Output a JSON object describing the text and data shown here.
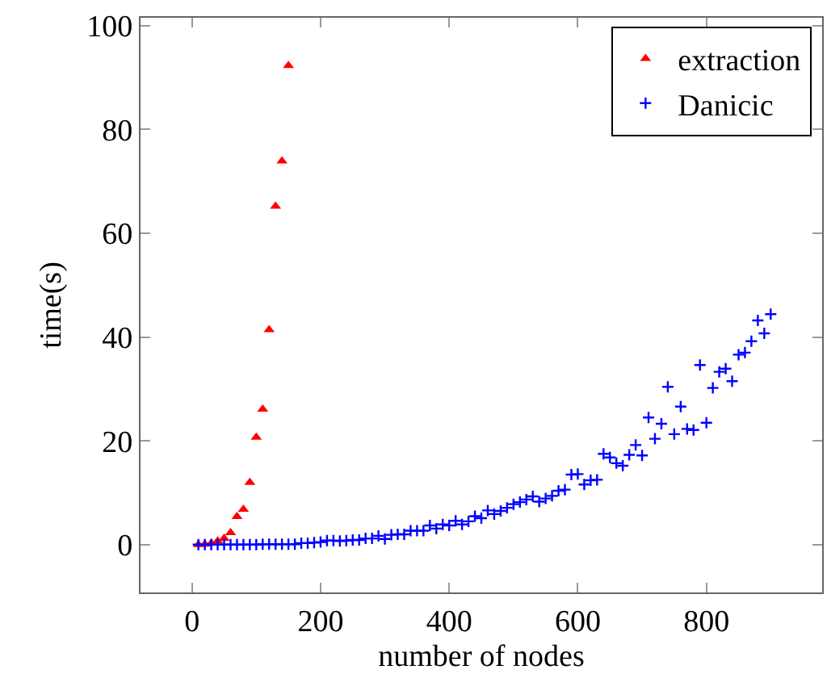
{
  "chart_data": {
    "type": "scatter",
    "xlabel": "number of nodes",
    "ylabel": "time(s)",
    "xlim": [
      -80,
      980
    ],
    "ylim": [
      -9.2,
      101.5
    ],
    "xticks": [
      0,
      200,
      400,
      600,
      800
    ],
    "yticks": [
      0,
      20,
      40,
      60,
      80,
      100
    ],
    "legend": "top right",
    "series": [
      {
        "name": "extraction",
        "color": "#ff0000",
        "marker": "triangle",
        "x": [
          10,
          20,
          30,
          40,
          50,
          60,
          70,
          80,
          90,
          100,
          110,
          120,
          130,
          140,
          150
        ],
        "values": [
          0.0,
          0.1,
          0.3,
          0.7,
          1.2,
          2.3,
          5.4,
          6.8,
          12.0,
          20.7,
          26.1,
          41.4,
          65.2,
          73.9,
          92.3
        ]
      },
      {
        "name": "Danicic",
        "color": "#0000ff",
        "marker": "cross",
        "x": [
          10,
          20,
          30,
          40,
          50,
          60,
          70,
          80,
          90,
          100,
          110,
          120,
          130,
          140,
          150,
          160,
          170,
          180,
          190,
          200,
          210,
          220,
          230,
          240,
          250,
          260,
          270,
          280,
          290,
          300,
          310,
          320,
          330,
          340,
          350,
          360,
          370,
          380,
          390,
          400,
          410,
          420,
          430,
          440,
          450,
          460,
          470,
          480,
          490,
          500,
          510,
          520,
          530,
          540,
          550,
          560,
          570,
          580,
          590,
          600,
          610,
          620,
          630,
          640,
          650,
          660,
          670,
          680,
          690,
          700,
          710,
          720,
          730,
          740,
          750,
          760,
          770,
          780,
          790,
          800,
          810,
          820,
          830,
          840,
          850,
          860,
          870,
          880,
          890,
          900
        ],
        "values": [
          0.0,
          0.0,
          0.0,
          0.0,
          0.0,
          0.0,
          0.0,
          0.0,
          0.0,
          0.0,
          0.1,
          0.1,
          0.1,
          0.1,
          0.1,
          0.1,
          0.3,
          0.3,
          0.4,
          0.5,
          0.8,
          0.8,
          0.7,
          0.8,
          0.9,
          0.9,
          1.2,
          1.2,
          1.7,
          1.1,
          1.9,
          2.0,
          2.0,
          2.7,
          2.7,
          2.7,
          3.7,
          3.1,
          3.9,
          3.7,
          4.6,
          3.9,
          4.5,
          5.5,
          5.1,
          6.6,
          5.9,
          6.5,
          7.1,
          7.8,
          8.2,
          8.7,
          9.3,
          8.3,
          8.9,
          9.4,
          10.4,
          10.6,
          13.5,
          13.6,
          11.6,
          12.4,
          12.5,
          17.5,
          16.8,
          15.7,
          15.2,
          17.3,
          19.2,
          17.2,
          24.5,
          20.4,
          23.3,
          30.4,
          21.3,
          26.6,
          22.3,
          22.1,
          34.6,
          23.5,
          30.2,
          33.3,
          33.9,
          31.5,
          36.6,
          37.0,
          39.2,
          43.2,
          40.7,
          44.4
        ]
      }
    ]
  }
}
